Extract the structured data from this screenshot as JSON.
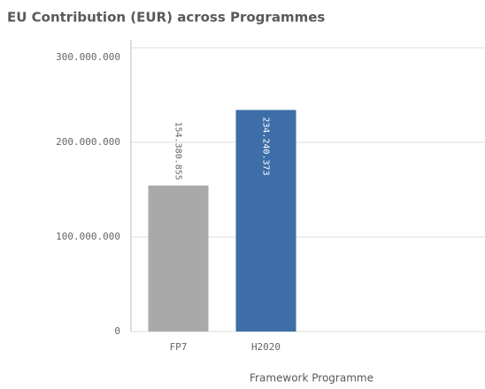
{
  "chart_data": {
    "type": "bar",
    "title": "EU Contribution (EUR) across Programmes",
    "x_label": "Framework Programme",
    "categories": [
      "FP7",
      "H2020"
    ],
    "values": [
      154380855,
      234240373
    ],
    "value_labels": [
      "154.380.855",
      "234.240.373"
    ],
    "colors": [
      "#a9a9a9",
      "#3d6ea8"
    ],
    "ylim": [
      0,
      300000000
    ],
    "yticks": [
      0,
      {
        "value": 100000000,
        "label": "100.000.000"
      },
      {
        "value": 200000000,
        "label": "200.000.000"
      },
      {
        "value": 300000000,
        "label": "300.000.000"
      }
    ],
    "grid": true
  }
}
